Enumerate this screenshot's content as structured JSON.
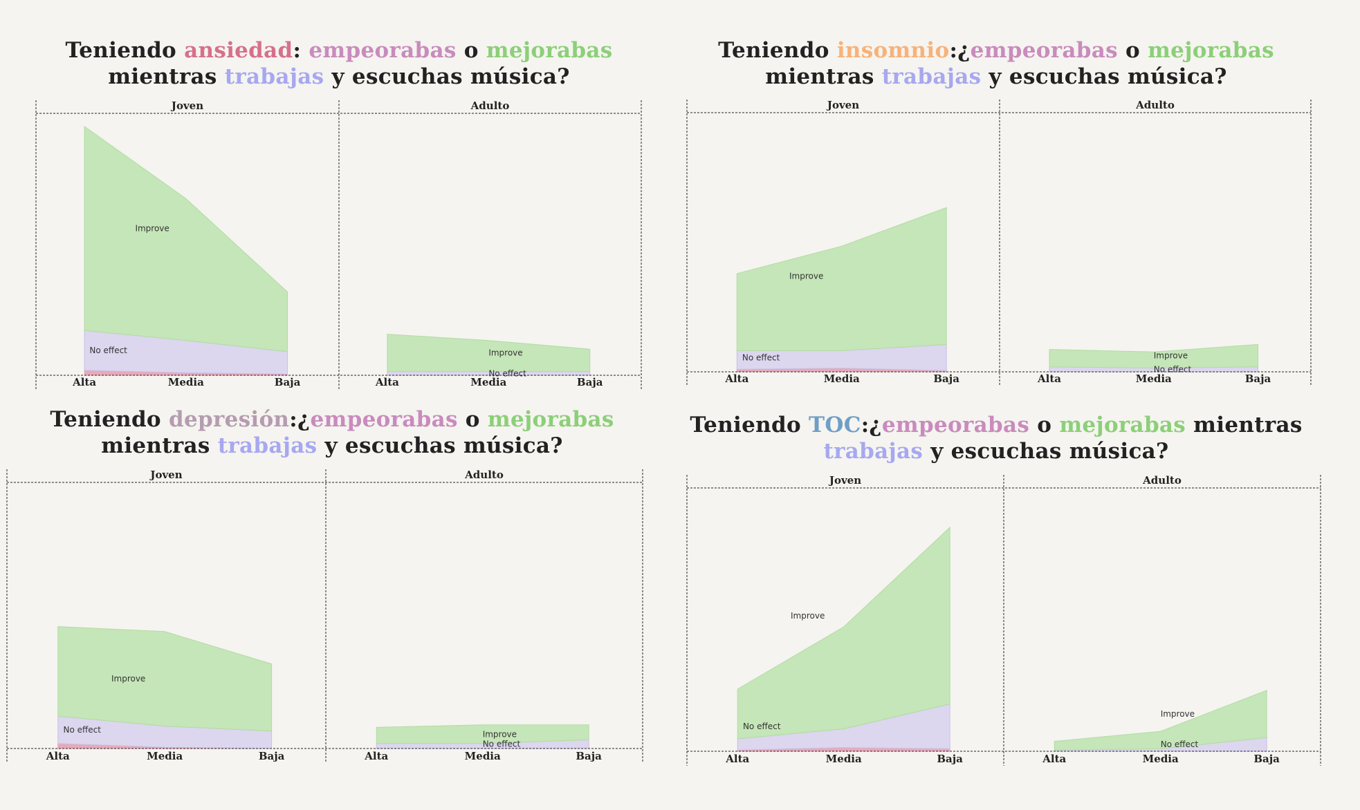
{
  "colors": {
    "improve": "#c5e6b8",
    "improve_stroke": "#b3dba3",
    "no_effect": "#dcd6ef",
    "no_effect_stroke": "#c9c0e6",
    "worsen": "#e8a9b8",
    "ink": "#222222",
    "ansiedad": "#d6708a",
    "insomnio": "#f7b27a",
    "depresion": "#b59cb0",
    "toc": "#6f9ec6",
    "empeorabas": "#c98bbd",
    "mejorabas": "#8ccf78",
    "trabajas": "#a7a8f0"
  },
  "titles": [
    {
      "segments": [
        {
          "text": "Teniendo ",
          "color": "ink"
        },
        {
          "text": "ansiedad",
          "color": "ansiedad"
        },
        {
          "text": ": ",
          "color": "ink"
        },
        {
          "text": "empeorabas",
          "color": "empeorabas"
        },
        {
          "text": " o ",
          "color": "ink"
        },
        {
          "text": "mejorabas",
          "color": "mejorabas"
        },
        {
          "text": " mientras ",
          "color": "ink",
          "br": true
        },
        {
          "text": "trabajas",
          "color": "trabajas"
        },
        {
          "text": " y escuchas música?",
          "color": "ink"
        }
      ]
    },
    {
      "segments": [
        {
          "text": "Teniendo ",
          "color": "ink"
        },
        {
          "text": "insomnio",
          "color": "insomnio"
        },
        {
          "text": ":¿",
          "color": "ink"
        },
        {
          "text": "empeorabas",
          "color": "empeorabas"
        },
        {
          "text": " o ",
          "color": "ink"
        },
        {
          "text": "mejorabas",
          "color": "mejorabas"
        },
        {
          "text": " mientras ",
          "color": "ink",
          "br": true
        },
        {
          "text": "trabajas",
          "color": "trabajas"
        },
        {
          "text": " y escuchas música?",
          "color": "ink"
        }
      ]
    },
    {
      "segments": [
        {
          "text": "Teniendo ",
          "color": "ink"
        },
        {
          "text": "depresión",
          "color": "depresion"
        },
        {
          "text": ":¿",
          "color": "ink"
        },
        {
          "text": "empeorabas",
          "color": "empeorabas"
        },
        {
          "text": " o ",
          "color": "ink"
        },
        {
          "text": "mejorabas",
          "color": "mejorabas"
        },
        {
          "text": " mientras ",
          "color": "ink",
          "br": true
        },
        {
          "text": "trabajas",
          "color": "trabajas"
        },
        {
          "text": " y escuchas música?",
          "color": "ink"
        }
      ]
    },
    {
      "segments": [
        {
          "text": "Teniendo ",
          "color": "ink"
        },
        {
          "text": "TOC",
          "color": "toc"
        },
        {
          "text": ":¿",
          "color": "ink"
        },
        {
          "text": "empeorabas",
          "color": "empeorabas"
        },
        {
          "text": " o ",
          "color": "ink"
        },
        {
          "text": "mejorabas",
          "color": "mejorabas"
        },
        {
          "text": " mientras ",
          "color": "ink"
        },
        {
          "text": "trabajas",
          "color": "trabajas",
          "br": true
        },
        {
          "text": " y escuchas música?",
          "color": "ink"
        }
      ]
    }
  ],
  "chart_data": [
    {
      "type": "area",
      "stacked": true,
      "categories": [
        "Alta",
        "Media",
        "Baja"
      ],
      "panels": [
        "Joven",
        "Adulto"
      ],
      "ylim": [
        0,
        100
      ],
      "series": [
        {
          "name": "Worsen",
          "label": "",
          "values": {
            "Joven": [
              2,
              1,
              0.5
            ],
            "Adulto": [
              0,
              0,
              0
            ]
          }
        },
        {
          "name": "No effect",
          "label": "No effect",
          "values": {
            "Joven": [
              16,
              13,
              9
            ],
            "Adulto": [
              1.5,
              1.5,
              1.5
            ]
          }
        },
        {
          "name": "Improve",
          "label": "Improve",
          "values": {
            "Joven": [
              82,
              57,
              24
            ],
            "Adulto": [
              15,
              12.5,
              9
            ]
          }
        }
      ],
      "label_positions": {
        "Improve": "Joven",
        "No effect": "Joven"
      }
    },
    {
      "type": "area",
      "stacked": true,
      "categories": [
        "Alta",
        "Media",
        "Baja"
      ],
      "panels": [
        "Joven",
        "Adulto"
      ],
      "ylim": [
        0,
        100
      ],
      "series": [
        {
          "name": "Worsen",
          "label": "",
          "values": {
            "Joven": [
              1,
              1.5,
              0.5
            ],
            "Adulto": [
              0,
              0,
              0
            ]
          }
        },
        {
          "name": "No effect",
          "label": "No effect",
          "values": {
            "Joven": [
              7.5,
              7,
              10.5
            ],
            "Adulto": [
              2,
              1.5,
              2
            ]
          }
        },
        {
          "name": "Improve",
          "label": "Improve",
          "values": {
            "Joven": [
              31,
              42,
              55
            ],
            "Adulto": [
              7,
              6.5,
              9
            ]
          }
        }
      ],
      "label_positions": {
        "Improve": "Joven",
        "No effect": "Joven"
      }
    },
    {
      "type": "area",
      "stacked": true,
      "categories": [
        "Alta",
        "Media",
        "Baja"
      ],
      "panels": [
        "Joven",
        "Adulto"
      ],
      "ylim": [
        0,
        100
      ],
      "series": [
        {
          "name": "Worsen",
          "label": "",
          "values": {
            "Joven": [
              2,
              0.5,
              0
            ],
            "Adulto": [
              0,
              0,
              0
            ]
          }
        },
        {
          "name": "No effect",
          "label": "No effect",
          "values": {
            "Joven": [
              11,
              8.5,
              7
            ],
            "Adulto": [
              2,
              2,
              3.5
            ]
          }
        },
        {
          "name": "Improve",
          "label": "Improve",
          "values": {
            "Joven": [
              36,
              38,
              27
            ],
            "Adulto": [
              6.5,
              7.5,
              6
            ]
          }
        }
      ],
      "label_positions": {
        "Improve": "Joven",
        "No effect": "Joven"
      }
    },
    {
      "type": "area",
      "stacked": true,
      "categories": [
        "Alta",
        "Media",
        "Baja"
      ],
      "panels": [
        "Joven",
        "Adulto"
      ],
      "ylim": [
        0,
        100
      ],
      "series": [
        {
          "name": "Worsen",
          "label": "",
          "values": {
            "Joven": [
              0.5,
              1.5,
              1
            ],
            "Adulto": [
              0,
              0,
              0
            ]
          }
        },
        {
          "name": "No effect",
          "label": "No effect",
          "values": {
            "Joven": [
              4.5,
              7.5,
              18
            ],
            "Adulto": [
              0.5,
              1,
              5.5
            ]
          }
        },
        {
          "name": "Improve",
          "label": "Improve",
          "values": {
            "Joven": [
              20,
              41,
              71
            ],
            "Adulto": [
              3.5,
              7,
              19
            ]
          }
        }
      ],
      "label_positions": {
        "Improve": "Joven",
        "No effect": "Joven"
      }
    }
  ]
}
